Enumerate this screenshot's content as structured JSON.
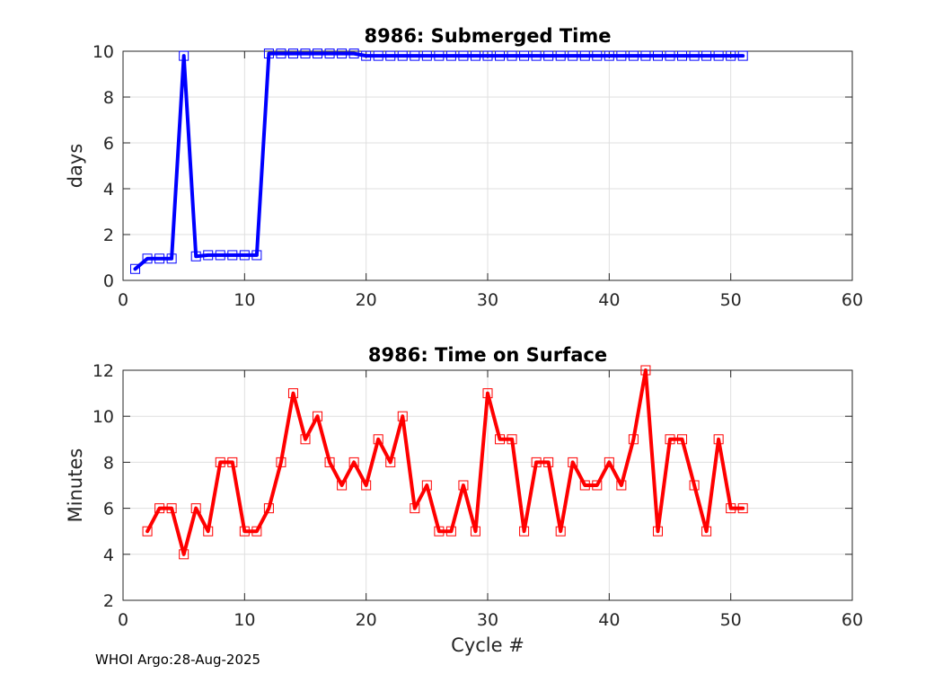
{
  "footer": "WHOI Argo:28-Aug-2025",
  "chart_data": [
    {
      "type": "line",
      "title": "8986: Submerged Time",
      "xlabel": "",
      "ylabel": "days",
      "xlim": [
        0,
        60
      ],
      "ylim": [
        0,
        10
      ],
      "xticks": [
        0,
        10,
        20,
        30,
        40,
        50,
        60
      ],
      "yticks": [
        0,
        2,
        4,
        6,
        8,
        10
      ],
      "grid": true,
      "color": "#0000ff",
      "series": [
        {
          "name": "Submerged Time",
          "x": [
            1,
            2,
            3,
            4,
            5,
            6,
            7,
            8,
            9,
            10,
            11,
            12,
            13,
            14,
            15,
            16,
            17,
            18,
            19,
            20,
            21,
            22,
            23,
            24,
            25,
            26,
            27,
            28,
            29,
            30,
            31,
            32,
            33,
            34,
            35,
            36,
            37,
            38,
            39,
            40,
            41,
            42,
            43,
            44,
            45,
            46,
            47,
            48,
            49,
            50,
            51
          ],
          "values": [
            0.5,
            0.95,
            0.95,
            0.95,
            9.8,
            1.05,
            1.1,
            1.1,
            1.1,
            1.1,
            1.1,
            9.9,
            9.9,
            9.9,
            9.9,
            9.9,
            9.9,
            9.9,
            9.9,
            9.8,
            9.8,
            9.8,
            9.8,
            9.8,
            9.8,
            9.8,
            9.8,
            9.8,
            9.8,
            9.8,
            9.8,
            9.8,
            9.8,
            9.8,
            9.8,
            9.8,
            9.8,
            9.8,
            9.8,
            9.8,
            9.8,
            9.8,
            9.8,
            9.8,
            9.8,
            9.8,
            9.8,
            9.8,
            9.8,
            9.8,
            9.8
          ]
        }
      ]
    },
    {
      "type": "line",
      "title": "8986: Time on Surface",
      "xlabel": "Cycle #",
      "ylabel": "Minutes",
      "xlim": [
        0,
        60
      ],
      "ylim": [
        2,
        12
      ],
      "xticks": [
        0,
        10,
        20,
        30,
        40,
        50,
        60
      ],
      "yticks": [
        2,
        4,
        6,
        8,
        10,
        12
      ],
      "grid": true,
      "color": "#ff0000",
      "series": [
        {
          "name": "Time on Surface",
          "x": [
            2,
            3,
            4,
            5,
            6,
            7,
            8,
            9,
            10,
            11,
            12,
            13,
            14,
            15,
            16,
            17,
            18,
            19,
            20,
            21,
            22,
            23,
            24,
            25,
            26,
            27,
            28,
            29,
            30,
            31,
            32,
            33,
            34,
            35,
            36,
            37,
            38,
            39,
            40,
            41,
            42,
            43,
            44,
            45,
            46,
            47,
            48,
            49,
            50,
            51
          ],
          "values": [
            5,
            6,
            6,
            4,
            6,
            5,
            8,
            8,
            5,
            5,
            6,
            8,
            11,
            9,
            10,
            8,
            7,
            8,
            7,
            9,
            8,
            10,
            6,
            7,
            5,
            5,
            7,
            5,
            11,
            9,
            9,
            5,
            8,
            8,
            5,
            8,
            7,
            7,
            8,
            7,
            9,
            12,
            5,
            9,
            9,
            7,
            5,
            9,
            6,
            6
          ]
        }
      ]
    }
  ]
}
